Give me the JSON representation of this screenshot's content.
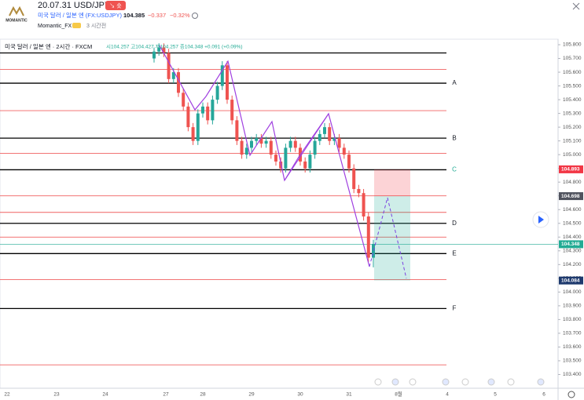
{
  "header": {
    "logo": "MOMANTIC",
    "title": "20.07.31 USD/JPY",
    "badge": "↘ 숏",
    "symbol": "미국 달러 / 일본 엔 (FX:USDJPY)",
    "price": "104.385",
    "change": "−0.337",
    "change_pct": "−0.32%",
    "author": "Momantic_FX",
    "time_ago": "3 시간전"
  },
  "legend": {
    "name": "미국 달러 / 일본 엔 · 2시간 · FXCM",
    "ohlc": "시104.257 고104.427 저104.257 종104.348 +0.091 (+0.09%)"
  },
  "chart_data": {
    "type": "candlestick",
    "open": [
      105.7,
      105.75,
      105.78,
      105.74,
      105.55,
      105.6,
      105.45,
      105.35,
      105.2,
      105.1,
      105.3,
      105.35,
      105.25,
      105.4,
      105.5,
      105.65,
      105.4,
      105.25,
      105.1,
      105.0,
      105.05,
      105.1,
      105.12,
      105.08,
      105.1,
      105.0,
      104.95,
      104.9,
      105.05,
      105.1,
      105.05,
      104.95,
      104.9,
      105.0,
      105.1,
      105.15,
      105.2,
      105.1,
      105.12,
      105.05,
      105.0,
      104.9,
      104.75,
      104.72,
      104.55,
      104.25
    ],
    "high": [
      105.78,
      105.81,
      105.81,
      105.77,
      105.63,
      105.63,
      105.48,
      105.38,
      105.23,
      105.33,
      105.38,
      105.38,
      105.43,
      105.53,
      105.68,
      105.68,
      105.43,
      105.28,
      105.13,
      105.08,
      105.13,
      105.15,
      105.15,
      105.13,
      105.13,
      105.03,
      104.98,
      105.08,
      105.13,
      105.13,
      105.08,
      104.98,
      105.03,
      105.13,
      105.18,
      105.23,
      105.23,
      105.15,
      105.15,
      105.08,
      105.03,
      104.93,
      104.78,
      104.75,
      104.58,
      104.38
    ],
    "low": [
      105.67,
      105.72,
      105.71,
      105.52,
      105.52,
      105.42,
      105.32,
      105.17,
      105.07,
      105.07,
      105.27,
      105.22,
      105.22,
      105.37,
      105.47,
      105.37,
      105.22,
      105.07,
      104.97,
      104.97,
      105.02,
      105.07,
      105.05,
      105.05,
      104.97,
      104.92,
      104.87,
      104.87,
      105.02,
      105.02,
      104.92,
      104.87,
      104.87,
      104.97,
      105.07,
      105.12,
      105.07,
      105.07,
      105.02,
      104.97,
      104.87,
      104.72,
      104.69,
      104.52,
      104.22,
      104.18
    ],
    "close": [
      105.75,
      105.78,
      105.74,
      105.55,
      105.6,
      105.45,
      105.35,
      105.2,
      105.1,
      105.3,
      105.35,
      105.25,
      105.4,
      105.5,
      105.65,
      105.4,
      105.25,
      105.1,
      105.0,
      105.05,
      105.1,
      105.12,
      105.08,
      105.1,
      105.0,
      104.95,
      104.9,
      105.05,
      105.1,
      105.05,
      104.95,
      104.9,
      105.0,
      105.1,
      105.15,
      105.2,
      105.1,
      105.12,
      105.05,
      105.0,
      104.9,
      104.75,
      104.72,
      104.55,
      104.25,
      104.35
    ],
    "up_color": "#26a69a",
    "down_color": "#ef5350",
    "ylim": [
      103.3,
      105.84
    ],
    "yticks": [
      {
        "value": 105.8,
        "label": "105.800"
      },
      {
        "value": 105.7,
        "label": "105.700"
      },
      {
        "value": 105.6,
        "label": "105.600"
      },
      {
        "value": 105.5,
        "label": "105.500"
      },
      {
        "value": 105.4,
        "label": "105.400"
      },
      {
        "value": 105.3,
        "label": "105.300"
      },
      {
        "value": 105.2,
        "label": "105.200"
      },
      {
        "value": 105.1,
        "label": "105.100"
      },
      {
        "value": 105.0,
        "label": "105.000"
      },
      {
        "value": 104.9,
        "label": "104.900"
      },
      {
        "value": 104.8,
        "label": "104.800"
      },
      {
        "value": 104.7,
        "label": "104.700"
      },
      {
        "value": 104.6,
        "label": "104.600"
      },
      {
        "value": 104.5,
        "label": "104.500"
      },
      {
        "value": 104.4,
        "label": "104.400"
      },
      {
        "value": 104.3,
        "label": "104.300"
      },
      {
        "value": 104.2,
        "label": "104.200"
      },
      {
        "value": 104.1,
        "label": "104.100"
      },
      {
        "value": 104.0,
        "label": "104.000"
      },
      {
        "value": 103.9,
        "label": "103.900"
      },
      {
        "value": 103.8,
        "label": "103.800"
      },
      {
        "value": 103.7,
        "label": "103.700"
      },
      {
        "value": 103.6,
        "label": "103.600"
      },
      {
        "value": 103.5,
        "label": "103.500"
      },
      {
        "value": 103.4,
        "label": "103.400"
      }
    ],
    "time_labels": [
      "22",
      "23",
      "24",
      "27",
      "28",
      "29",
      "30",
      "31",
      "8월",
      "4",
      "5",
      "6"
    ],
    "levels": [
      {
        "value": 105.74,
        "color": "#000000"
      },
      {
        "value": 105.52,
        "color": "#000000",
        "label": "A"
      },
      {
        "value": 105.12,
        "color": "#000000",
        "label": "B"
      },
      {
        "value": 104.89,
        "color": "#000000",
        "label": "C"
      },
      {
        "value": 104.5,
        "color": "#000000",
        "label": "D"
      },
      {
        "value": 104.28,
        "color": "#000000",
        "label": "E"
      },
      {
        "value": 103.88,
        "color": "#000000",
        "label": "F"
      },
      {
        "value": 105.62,
        "color": "#f06060"
      },
      {
        "value": 105.32,
        "color": "#f06060"
      },
      {
        "value": 105.01,
        "color": "#f06060"
      },
      {
        "value": 104.7,
        "color": "#f06060"
      },
      {
        "value": 104.58,
        "color": "#f06060"
      },
      {
        "value": 104.4,
        "color": "#f06060"
      },
      {
        "value": 104.09,
        "color": "#f06060"
      },
      {
        "value": 103.47,
        "color": "#f06060"
      }
    ],
    "price_tags": [
      {
        "value": 104.893,
        "label": "104.893",
        "color": "#f23645"
      },
      {
        "value": 104.698,
        "label": "104.698",
        "color": "#50535e"
      },
      {
        "value": 104.348,
        "label": "104.348",
        "color": "#22ab94"
      },
      {
        "value": 104.084,
        "label": "104.084",
        "color": "#1e3a6e"
      }
    ]
  }
}
